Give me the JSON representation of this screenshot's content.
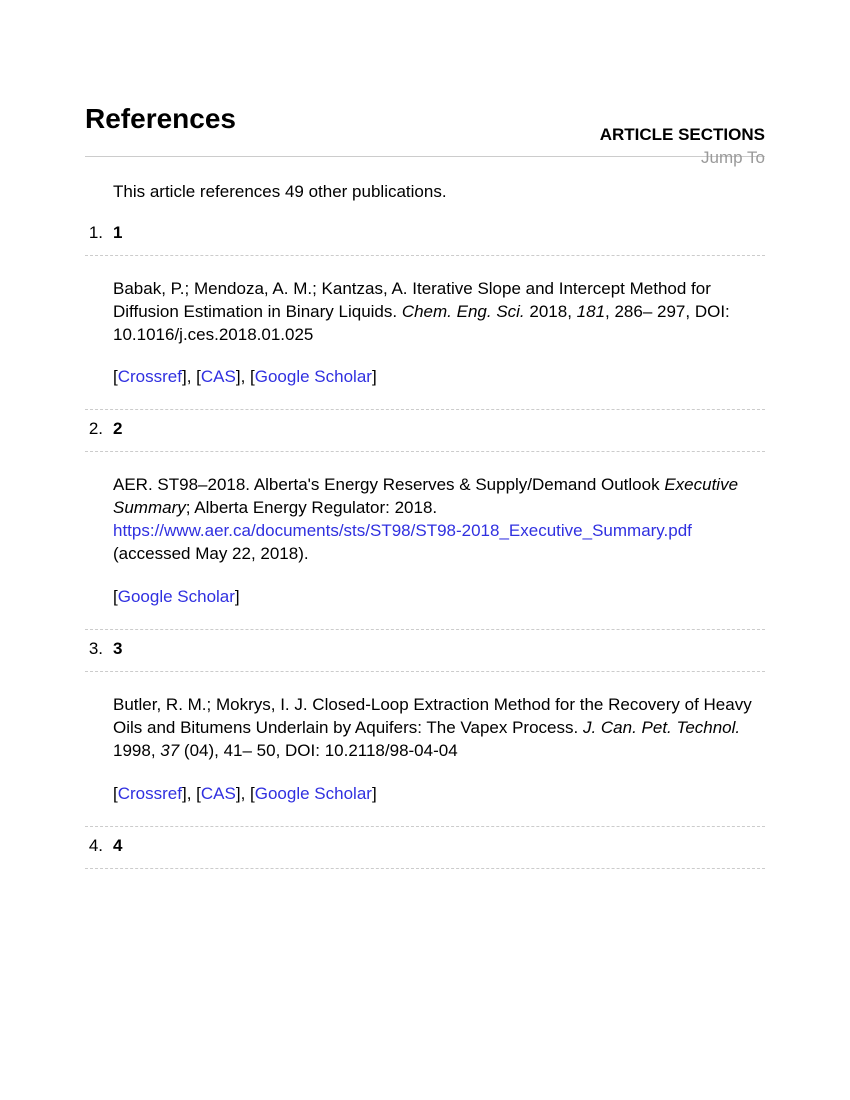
{
  "header": {
    "title": "References",
    "sections_label": "ARTICLE SECTIONS",
    "jump_to": "Jump To"
  },
  "intro": "This article references 49 other publications.",
  "link_labels": {
    "crossref": "Crossref",
    "cas": "CAS",
    "scholar": "Google Scholar"
  },
  "colors": {
    "link": "#3030e0",
    "muted": "#9a9a9a",
    "divider": "#cccccc",
    "text": "#000000",
    "background": "#ffffff"
  },
  "references": [
    {
      "ordinal": "1.",
      "label": "1",
      "text_parts": {
        "p1": "Babak, P.; Mendoza, A. M.; Kantzas, A. Iterative Slope and Intercept Method for Diffusion Estimation in Binary Liquids. ",
        "i1": "Chem. Eng. Sci.",
        "p2": " 2018, ",
        "i2": "181",
        "p3": ", 286– 297, DOI: 10.1016/j.ces.2018.01.025"
      },
      "links": [
        "crossref",
        "cas",
        "scholar"
      ]
    },
    {
      "ordinal": "2.",
      "label": "2",
      "text_parts": {
        "p1": "AER. ST98–2018. Alberta's Energy Reserves & Supply/Demand Outlook ",
        "i1": "Executive Summary",
        "p2": "; Alberta Energy Regulator: 2018. ",
        "url": "https://www.aer.ca/documents/sts/ST98/ST98-2018_Executive_Summary.pdf",
        "p3": " (accessed May 22, 2018)."
      },
      "links": [
        "scholar"
      ]
    },
    {
      "ordinal": "3.",
      "label": "3",
      "text_parts": {
        "p1": "Butler, R. M.; Mokrys, I. J. Closed-Loop Extraction Method for the Recovery of Heavy Oils and Bitumens Underlain by Aquifers: The Vapex Process. ",
        "i1": "J. Can. Pet. Technol.",
        "p2": " 1998, ",
        "i2": "37",
        "p3": " (04), 41– 50, DOI: 10.2118/98-04-04"
      },
      "links": [
        "crossref",
        "cas",
        "scholar"
      ]
    },
    {
      "ordinal": "4.",
      "label": "4",
      "text_parts": {},
      "links": []
    }
  ]
}
